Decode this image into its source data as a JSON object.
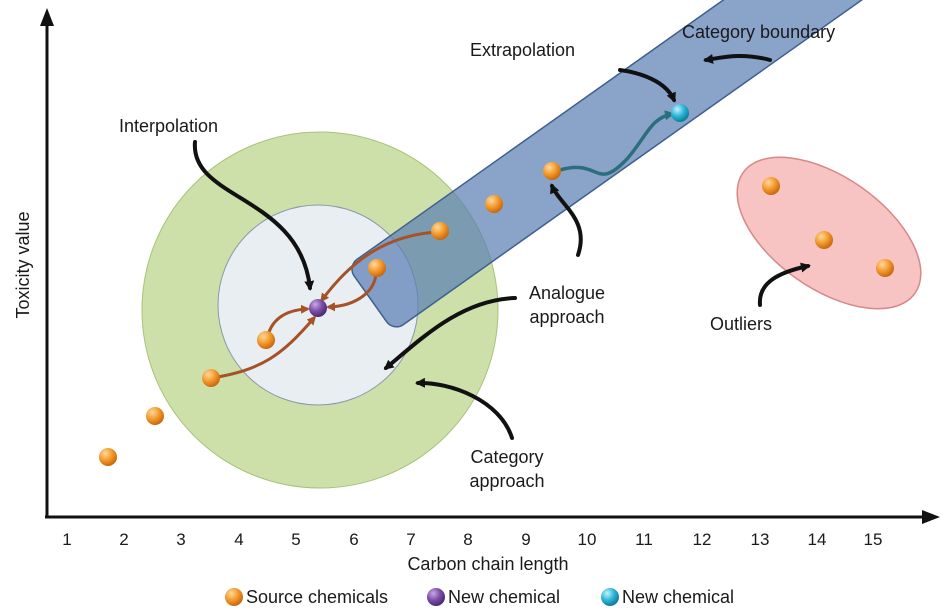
{
  "colors": {
    "source": "#f39a2c",
    "new_interp": "#7a4ea6",
    "new_extrap": "#2ab6d9",
    "category_band": "#5b80b4",
    "green_ring": "#bcd58d",
    "inner_circle": "#e9eef2",
    "outlier_ellipse": "#f6b9b9",
    "interp_arrow": "#a65228",
    "extrap_arrow": "#2b6e7e",
    "black": "#111111"
  },
  "axes": {
    "x_label": "Carbon chain length",
    "y_label": "Toxicity value",
    "x_ticks": [
      "1",
      "2",
      "3",
      "4",
      "5",
      "6",
      "7",
      "8",
      "9",
      "10",
      "11",
      "12",
      "13",
      "14",
      "15"
    ]
  },
  "labels": {
    "category_boundary": "Category boundary",
    "extrapolation": "Extrapolation",
    "interpolation": "Interpolation",
    "analogue_1": "Analogue",
    "analogue_2": "approach",
    "category_1": "Category",
    "category_2": "approach",
    "outliers": "Outliers"
  },
  "legend": [
    {
      "label": "Source chemicals",
      "color": "#f39a2c",
      "icon": "orange-dot-icon"
    },
    {
      "label": "New chemical",
      "color": "#7a4ea6",
      "icon": "purple-dot-icon"
    },
    {
      "label": "New chemical",
      "color": "#2ab6d9",
      "icon": "blue-dot-icon"
    }
  ]
}
